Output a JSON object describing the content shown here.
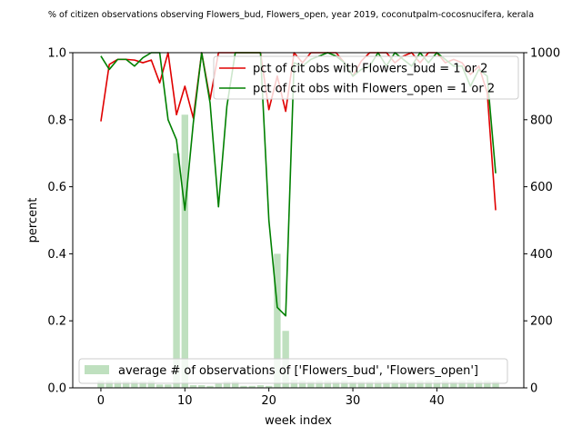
{
  "chart_data": {
    "type": "line",
    "title": "% of citizen observations observing Flowers_bud, Flowers_open, year 2019, coconutpalm-cocosnucifera, kerala",
    "xlabel": "week index",
    "ylabel": "percent",
    "xlim": [
      -3.35,
      50.35
    ],
    "ylim": [
      0,
      1
    ],
    "ylim_right": [
      0,
      1000
    ],
    "x_ticks": [
      0,
      10,
      20,
      30,
      40
    ],
    "y_ticks": [
      0.0,
      0.2,
      0.4,
      0.6,
      0.8,
      1.0
    ],
    "y_tick_labels": [
      "0.0",
      "0.2",
      "0.4",
      "0.6",
      "0.8",
      "1.0"
    ],
    "y2_ticks": [
      0,
      200,
      400,
      600,
      800,
      1000
    ],
    "grid": false,
    "legend_upper": "top-right",
    "legend_lower": "bottom-left",
    "colors": {
      "bud": "#e00000",
      "open": "#008000",
      "bars": "#bfe0bf"
    },
    "x": [
      0,
      1,
      2,
      3,
      4,
      5,
      6,
      7,
      8,
      9,
      10,
      11,
      12,
      13,
      14,
      15,
      16,
      17,
      18,
      19,
      20,
      21,
      22,
      23,
      24,
      25,
      26,
      27,
      28,
      29,
      30,
      31,
      32,
      33,
      34,
      35,
      36,
      37,
      38,
      39,
      40,
      41,
      42,
      43,
      44,
      45,
      46,
      47
    ],
    "series": [
      {
        "name": "pct of cit obs with Flowers_bud = 1 or 2",
        "values": [
          0.795,
          0.965,
          0.98,
          0.98,
          0.978,
          0.97,
          0.978,
          0.91,
          1.0,
          0.815,
          0.9,
          0.805,
          1.0,
          0.86,
          1.0,
          1.0,
          1.0,
          1.0,
          1.0,
          1.0,
          0.83,
          0.93,
          0.825,
          1.0,
          0.97,
          1.0,
          1.0,
          1.0,
          1.0,
          0.97,
          0.93,
          0.975,
          1.0,
          1.0,
          1.0,
          0.97,
          0.99,
          1.0,
          0.97,
          1.0,
          1.0,
          0.97,
          0.98,
          0.97,
          0.935,
          0.96,
          0.88,
          0.53
        ]
      },
      {
        "name": "pct of cit obs with Flowers_open = 1 or 2",
        "values": [
          0.99,
          0.95,
          0.98,
          0.98,
          0.96,
          0.985,
          1.0,
          1.0,
          0.8,
          0.74,
          0.53,
          0.79,
          1.0,
          0.85,
          0.54,
          0.84,
          1.0,
          1.0,
          1.0,
          1.0,
          0.5,
          0.24,
          0.215,
          0.97,
          0.96,
          0.98,
          0.99,
          1.0,
          0.99,
          0.97,
          0.93,
          0.95,
          0.96,
          1.0,
          0.96,
          1.0,
          0.98,
          0.96,
          1.0,
          0.97,
          1.0,
          0.98,
          0.96,
          0.96,
          0.9,
          0.95,
          0.93,
          0.64
        ]
      }
    ],
    "bars": {
      "name": "average # of observations of ['Flowers_bud', 'Flowers_open']",
      "values": [
        22,
        22,
        22,
        20,
        22,
        20,
        22,
        10,
        10,
        700,
        815,
        8,
        8,
        6,
        12,
        20,
        20,
        6,
        6,
        8,
        6,
        400,
        170,
        24,
        22,
        20,
        22,
        22,
        20,
        22,
        20,
        20,
        20,
        22,
        20,
        22,
        22,
        20,
        22,
        22,
        24,
        22,
        20,
        22,
        24,
        22,
        22,
        20
      ]
    }
  }
}
